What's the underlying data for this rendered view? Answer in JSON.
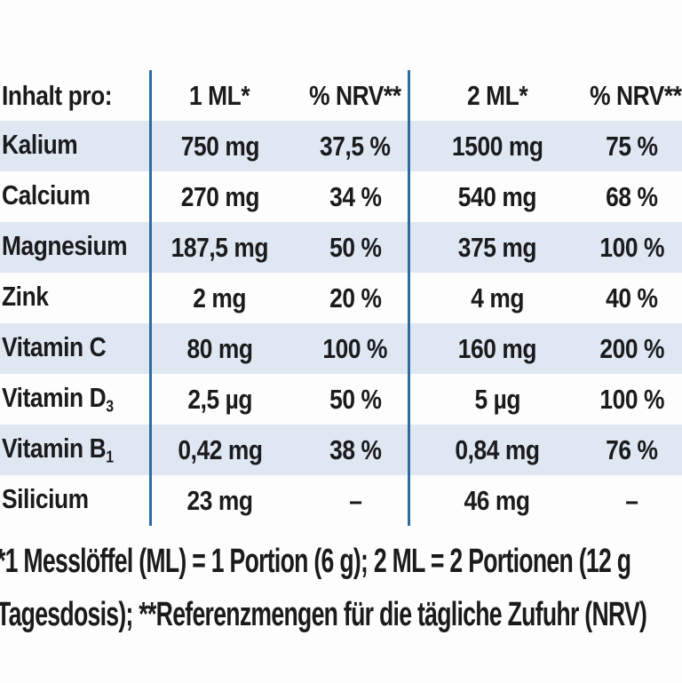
{
  "colors": {
    "divider_blue": "#2d6ca3",
    "row_band_blue": "#dfe7f3",
    "text": "#1b1b1d",
    "background": "#fdfdfd"
  },
  "table": {
    "header": {
      "col0": "Inhalt pro:",
      "col1": "1 ML*",
      "col2": "% NRV**",
      "col3": "2 ML*",
      "col4": "% NRV**"
    },
    "rows": [
      {
        "label": "Kalium",
        "label_sub": "",
        "v1": "750 mg",
        "nrv1": "37,5 %",
        "v2": "1500 mg",
        "nrv2": "75 %"
      },
      {
        "label": "Calcium",
        "label_sub": "",
        "v1": "270 mg",
        "nrv1": "34 %",
        "v2": "540 mg",
        "nrv2": "68 %"
      },
      {
        "label": "Magnesium",
        "label_sub": "",
        "v1": "187,5 mg",
        "nrv1": "50 %",
        "v2": "375 mg",
        "nrv2": "100 %"
      },
      {
        "label": "Zink",
        "label_sub": "",
        "v1": "2 mg",
        "nrv1": "20 %",
        "v2": "4 mg",
        "nrv2": "40 %"
      },
      {
        "label": "Vitamin C",
        "label_sub": "",
        "v1": "80 mg",
        "nrv1": "100 %",
        "v2": "160 mg",
        "nrv2": "200 %"
      },
      {
        "label": "Vitamin D",
        "label_sub": "3",
        "v1": "2,5 µg",
        "nrv1": "50 %",
        "v2": "5 µg",
        "nrv2": "100 %"
      },
      {
        "label": "Vitamin B",
        "label_sub": "1",
        "v1": "0,42 mg",
        "nrv1": "38 %",
        "v2": "0,84 mg",
        "nrv2": "76 %"
      },
      {
        "label": "Silicium",
        "label_sub": "",
        "v1": "23 mg",
        "nrv1": "–",
        "v2": "46 mg",
        "nrv2": "–"
      }
    ]
  },
  "footnotes": {
    "line1": "*1 Messlöffel (ML) = 1 Portion (6 g); 2 ML = 2 Portionen (12 g",
    "line2": "Tagesdosis); **Referenzmengen für die tägliche Zufuhr (NRV)"
  }
}
